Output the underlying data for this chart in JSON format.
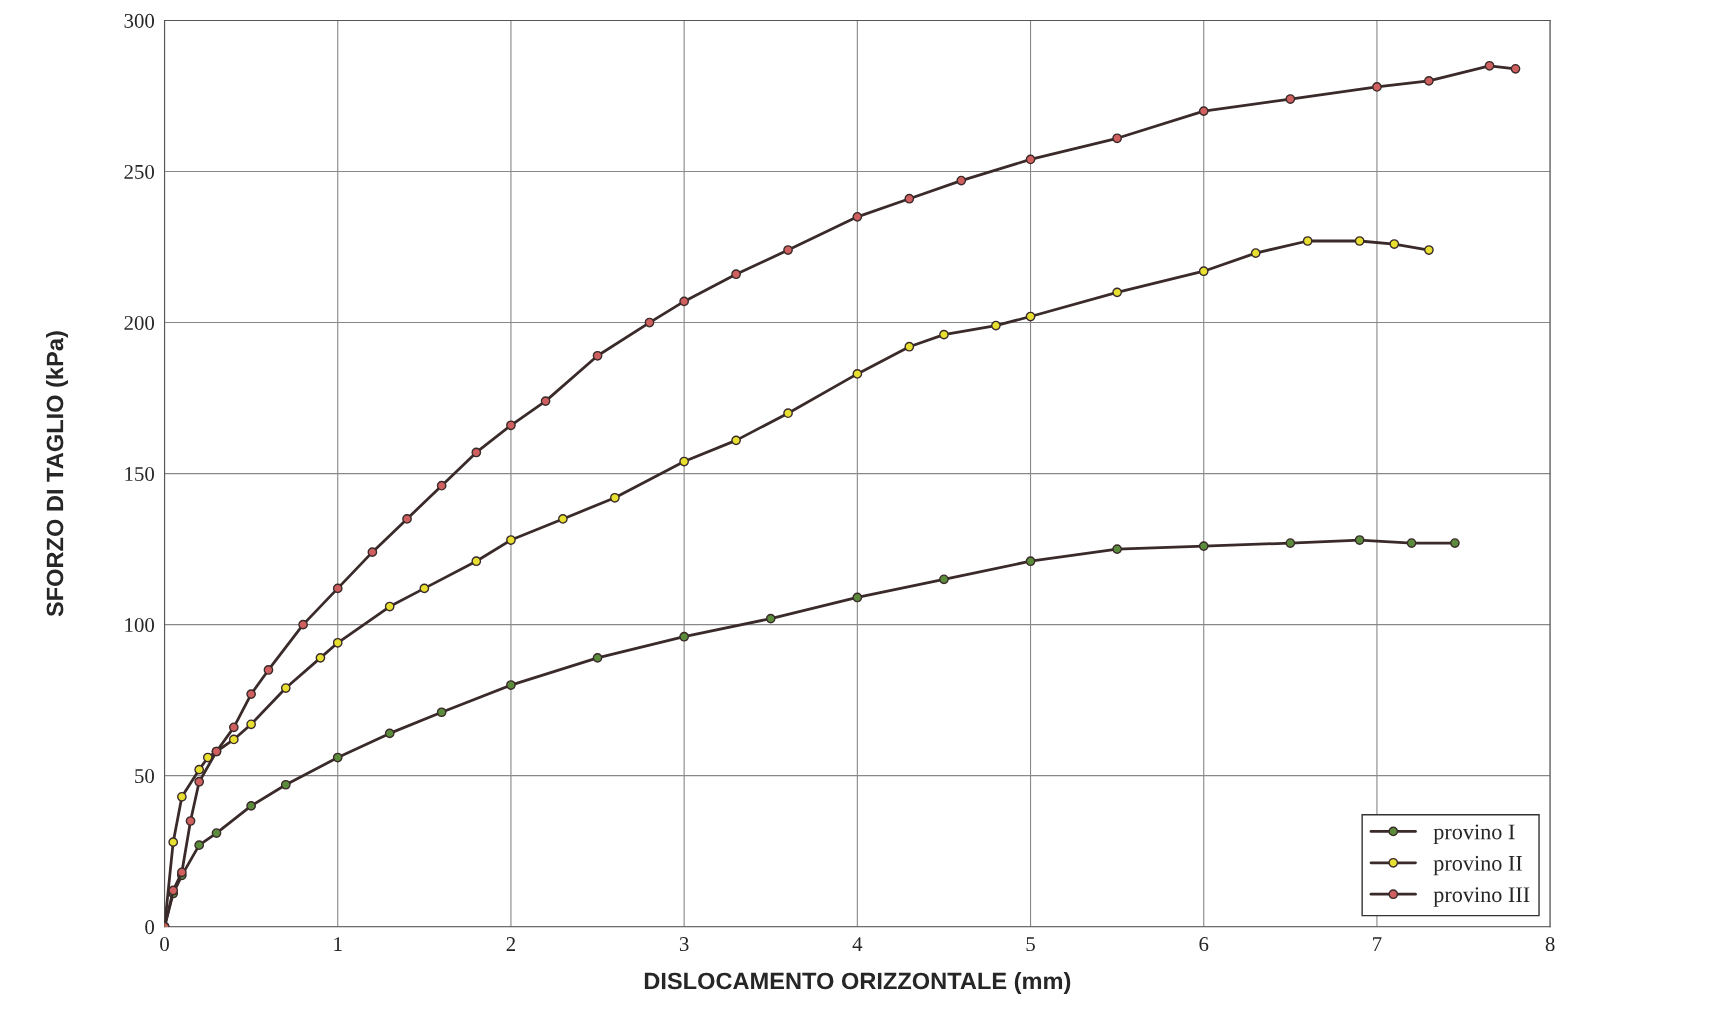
{
  "chart_data": {
    "type": "line",
    "xlabel": "DISLOCAMENTO ORIZZONTALE (mm)",
    "ylabel": "SFORZO DI TAGLIO (kPa)",
    "xlim": [
      0,
      8
    ],
    "ylim": [
      0,
      300
    ],
    "xticks": [
      0,
      1,
      2,
      3,
      4,
      5,
      6,
      7,
      8
    ],
    "yticks": [
      0,
      50,
      100,
      150,
      200,
      250,
      300
    ],
    "grid": true,
    "legend": "bottom right",
    "marker": "circle",
    "line_style": "solid",
    "series": [
      {
        "name": "provino I",
        "color": "#5b8c3c",
        "x": [
          0,
          0.05,
          0.1,
          0.2,
          0.3,
          0.5,
          0.7,
          1,
          1.3,
          1.6,
          2,
          2.5,
          3,
          3.5,
          4,
          4.5,
          5,
          5.5,
          6,
          6.5,
          6.9,
          7.2,
          7.45
        ],
        "values": [
          0,
          11,
          17,
          27,
          31,
          40,
          47,
          56,
          64,
          71,
          80,
          89,
          96,
          102,
          109,
          115,
          121,
          125,
          126,
          127,
          128,
          127,
          127
        ]
      },
      {
        "name": "provino II",
        "color": "#e8e030",
        "x": [
          0,
          0.05,
          0.1,
          0.2,
          0.25,
          0.3,
          0.4,
          0.5,
          0.7,
          0.9,
          1,
          1.3,
          1.5,
          1.8,
          2,
          2.3,
          2.6,
          3,
          3.3,
          3.6,
          4,
          4.3,
          4.5,
          4.8,
          5,
          5.5,
          6,
          6.3,
          6.6,
          6.9,
          7.1,
          7.3
        ],
        "values": [
          0,
          28,
          43,
          52,
          56,
          58,
          62,
          67,
          79,
          89,
          94,
          106,
          112,
          121,
          128,
          135,
          142,
          154,
          161,
          170,
          183,
          192,
          196,
          199,
          202,
          210,
          217,
          223,
          227,
          227,
          226,
          224
        ]
      },
      {
        "name": "provino III",
        "color": "#d06060",
        "x": [
          0,
          0.05,
          0.1,
          0.15,
          0.2,
          0.3,
          0.4,
          0.5,
          0.6,
          0.8,
          1,
          1.2,
          1.4,
          1.6,
          1.8,
          2,
          2.2,
          2.5,
          2.8,
          3,
          3.3,
          3.6,
          4,
          4.3,
          4.6,
          5,
          5.5,
          6,
          6.5,
          7,
          7.3,
          7.65,
          7.8
        ],
        "values": [
          0,
          12,
          18,
          35,
          48,
          58,
          66,
          77,
          85,
          100,
          112,
          124,
          135,
          146,
          157,
          166,
          174,
          189,
          200,
          207,
          216,
          224,
          235,
          241,
          247,
          254,
          261,
          270,
          274,
          278,
          280,
          285,
          284
        ]
      }
    ]
  }
}
